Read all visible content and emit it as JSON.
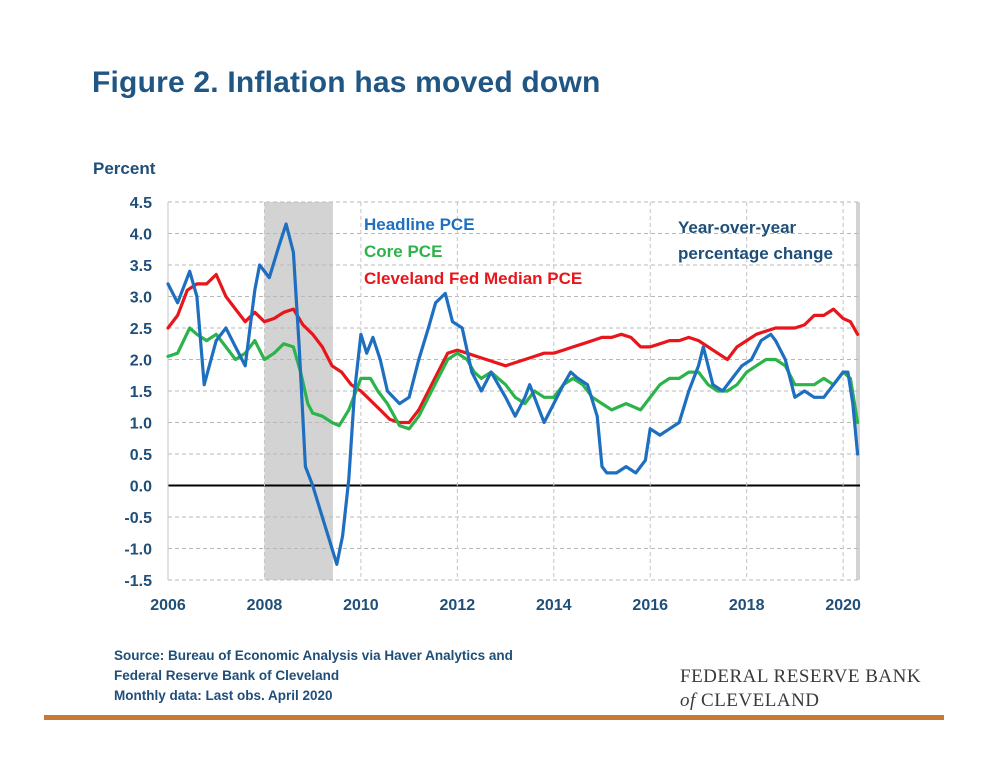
{
  "title": "Figure 2. Inflation has moved down",
  "source": {
    "line1": "Source: Bureau of Economic Analysis via Haver Analytics and",
    "line2": "Federal Reserve Bank of Cleveland",
    "line3": "Monthly data: Last obs. April 2020"
  },
  "logo": {
    "line1": "FEDERAL RESERVE BANK",
    "of": "of",
    "line2": "CLEVELAND"
  },
  "colors": {
    "title": "#1f5683",
    "headline": "#1f6fc0",
    "core": "#2cb34a",
    "median": "#e8161b",
    "recession": "#d3d3d3",
    "axis_text": "#1f4e79",
    "rule": "#c87a34"
  },
  "chart_data": {
    "type": "line",
    "ylabel": "Percent",
    "ylim": [
      -1.5,
      4.5
    ],
    "yticks": [
      "4.5",
      "4.0",
      "3.5",
      "3.0",
      "2.5",
      "2.0",
      "1.5",
      "1.0",
      "0.5",
      "0.0",
      "-0.5",
      "-1.0",
      "-1.5"
    ],
    "xlim": [
      2006.0,
      2020.35
    ],
    "xticks": [
      "2006",
      "2008",
      "2010",
      "2012",
      "2014",
      "2016",
      "2018",
      "2020"
    ],
    "grid": "horizontal dashed",
    "recession_shading": [
      2008.0,
      2009.42
    ],
    "annotation": [
      "Year-over-year",
      "percentage change"
    ],
    "legend_placement": "top-left inside plot",
    "series": [
      {
        "name": "Headline PCE",
        "points": [
          [
            2006.0,
            3.2
          ],
          [
            2006.2,
            2.9
          ],
          [
            2006.45,
            3.4
          ],
          [
            2006.6,
            3.0
          ],
          [
            2006.75,
            1.6
          ],
          [
            2007.0,
            2.3
          ],
          [
            2007.2,
            2.5
          ],
          [
            2007.4,
            2.2
          ],
          [
            2007.6,
            1.9
          ],
          [
            2007.8,
            3.1
          ],
          [
            2007.9,
            3.5
          ],
          [
            2008.1,
            3.3
          ],
          [
            2008.3,
            3.8
          ],
          [
            2008.45,
            4.15
          ],
          [
            2008.6,
            3.7
          ],
          [
            2008.72,
            2.2
          ],
          [
            2008.85,
            0.3
          ],
          [
            2009.0,
            0.0
          ],
          [
            2009.2,
            -0.5
          ],
          [
            2009.4,
            -1.0
          ],
          [
            2009.5,
            -1.25
          ],
          [
            2009.62,
            -0.8
          ],
          [
            2009.75,
            0.1
          ],
          [
            2009.87,
            1.5
          ],
          [
            2010.0,
            2.4
          ],
          [
            2010.12,
            2.1
          ],
          [
            2010.25,
            2.35
          ],
          [
            2010.4,
            2.0
          ],
          [
            2010.55,
            1.5
          ],
          [
            2010.8,
            1.3
          ],
          [
            2011.0,
            1.4
          ],
          [
            2011.2,
            2.0
          ],
          [
            2011.4,
            2.5
          ],
          [
            2011.55,
            2.9
          ],
          [
            2011.75,
            3.05
          ],
          [
            2011.9,
            2.6
          ],
          [
            2012.1,
            2.5
          ],
          [
            2012.3,
            1.8
          ],
          [
            2012.5,
            1.5
          ],
          [
            2012.7,
            1.8
          ],
          [
            2012.85,
            1.6
          ],
          [
            2013.0,
            1.4
          ],
          [
            2013.2,
            1.1
          ],
          [
            2013.4,
            1.4
          ],
          [
            2013.5,
            1.6
          ],
          [
            2013.7,
            1.2
          ],
          [
            2013.8,
            1.0
          ],
          [
            2014.0,
            1.3
          ],
          [
            2014.2,
            1.6
          ],
          [
            2014.35,
            1.8
          ],
          [
            2014.5,
            1.7
          ],
          [
            2014.7,
            1.6
          ],
          [
            2014.9,
            1.1
          ],
          [
            2015.0,
            0.3
          ],
          [
            2015.1,
            0.2
          ],
          [
            2015.3,
            0.2
          ],
          [
            2015.5,
            0.3
          ],
          [
            2015.7,
            0.2
          ],
          [
            2015.9,
            0.4
          ],
          [
            2016.0,
            0.9
          ],
          [
            2016.2,
            0.8
          ],
          [
            2016.4,
            0.9
          ],
          [
            2016.6,
            1.0
          ],
          [
            2016.8,
            1.5
          ],
          [
            2017.0,
            1.9
          ],
          [
            2017.1,
            2.2
          ],
          [
            2017.3,
            1.6
          ],
          [
            2017.5,
            1.5
          ],
          [
            2017.7,
            1.7
          ],
          [
            2017.9,
            1.9
          ],
          [
            2018.1,
            2.0
          ],
          [
            2018.3,
            2.3
          ],
          [
            2018.5,
            2.4
          ],
          [
            2018.6,
            2.3
          ],
          [
            2018.8,
            2.0
          ],
          [
            2019.0,
            1.4
          ],
          [
            2019.2,
            1.5
          ],
          [
            2019.4,
            1.4
          ],
          [
            2019.6,
            1.4
          ],
          [
            2019.8,
            1.6
          ],
          [
            2020.0,
            1.8
          ],
          [
            2020.1,
            1.8
          ],
          [
            2020.2,
            1.3
          ],
          [
            2020.3,
            0.5
          ]
        ]
      },
      {
        "name": "Core PCE",
        "points": [
          [
            2006.0,
            2.05
          ],
          [
            2006.2,
            2.1
          ],
          [
            2006.45,
            2.5
          ],
          [
            2006.6,
            2.4
          ],
          [
            2006.8,
            2.3
          ],
          [
            2007.0,
            2.4
          ],
          [
            2007.2,
            2.2
          ],
          [
            2007.4,
            2.0
          ],
          [
            2007.6,
            2.1
          ],
          [
            2007.8,
            2.3
          ],
          [
            2008.0,
            2.0
          ],
          [
            2008.2,
            2.1
          ],
          [
            2008.4,
            2.25
          ],
          [
            2008.6,
            2.2
          ],
          [
            2008.75,
            1.8
          ],
          [
            2008.9,
            1.3
          ],
          [
            2009.0,
            1.15
          ],
          [
            2009.2,
            1.1
          ],
          [
            2009.4,
            1.0
          ],
          [
            2009.55,
            0.95
          ],
          [
            2009.75,
            1.2
          ],
          [
            2010.0,
            1.7
          ],
          [
            2010.2,
            1.7
          ],
          [
            2010.35,
            1.5
          ],
          [
            2010.55,
            1.3
          ],
          [
            2010.8,
            0.95
          ],
          [
            2011.0,
            0.9
          ],
          [
            2011.2,
            1.1
          ],
          [
            2011.4,
            1.4
          ],
          [
            2011.6,
            1.7
          ],
          [
            2011.8,
            2.0
          ],
          [
            2012.0,
            2.1
          ],
          [
            2012.2,
            2.0
          ],
          [
            2012.35,
            1.8
          ],
          [
            2012.5,
            1.7
          ],
          [
            2012.7,
            1.8
          ],
          [
            2012.85,
            1.7
          ],
          [
            2013.0,
            1.6
          ],
          [
            2013.2,
            1.4
          ],
          [
            2013.4,
            1.3
          ],
          [
            2013.6,
            1.5
          ],
          [
            2013.8,
            1.4
          ],
          [
            2014.0,
            1.4
          ],
          [
            2014.2,
            1.6
          ],
          [
            2014.4,
            1.7
          ],
          [
            2014.6,
            1.6
          ],
          [
            2014.8,
            1.4
          ],
          [
            2015.0,
            1.3
          ],
          [
            2015.2,
            1.2
          ],
          [
            2015.5,
            1.3
          ],
          [
            2015.8,
            1.2
          ],
          [
            2016.0,
            1.4
          ],
          [
            2016.2,
            1.6
          ],
          [
            2016.4,
            1.7
          ],
          [
            2016.6,
            1.7
          ],
          [
            2016.8,
            1.8
          ],
          [
            2017.0,
            1.8
          ],
          [
            2017.2,
            1.6
          ],
          [
            2017.4,
            1.5
          ],
          [
            2017.6,
            1.5
          ],
          [
            2017.8,
            1.6
          ],
          [
            2018.0,
            1.8
          ],
          [
            2018.2,
            1.9
          ],
          [
            2018.4,
            2.0
          ],
          [
            2018.6,
            2.0
          ],
          [
            2018.8,
            1.9
          ],
          [
            2019.0,
            1.6
          ],
          [
            2019.2,
            1.6
          ],
          [
            2019.4,
            1.6
          ],
          [
            2019.6,
            1.7
          ],
          [
            2019.8,
            1.6
          ],
          [
            2020.0,
            1.8
          ],
          [
            2020.15,
            1.7
          ],
          [
            2020.3,
            1.0
          ]
        ]
      },
      {
        "name": "Cleveland Fed Median PCE",
        "points": [
          [
            2006.0,
            2.5
          ],
          [
            2006.2,
            2.7
          ],
          [
            2006.4,
            3.1
          ],
          [
            2006.6,
            3.2
          ],
          [
            2006.8,
            3.2
          ],
          [
            2007.0,
            3.35
          ],
          [
            2007.2,
            3.0
          ],
          [
            2007.4,
            2.8
          ],
          [
            2007.6,
            2.6
          ],
          [
            2007.8,
            2.75
          ],
          [
            2008.0,
            2.6
          ],
          [
            2008.2,
            2.65
          ],
          [
            2008.4,
            2.75
          ],
          [
            2008.6,
            2.8
          ],
          [
            2008.8,
            2.55
          ],
          [
            2009.0,
            2.4
          ],
          [
            2009.2,
            2.2
          ],
          [
            2009.4,
            1.9
          ],
          [
            2009.6,
            1.8
          ],
          [
            2009.8,
            1.6
          ],
          [
            2010.0,
            1.5
          ],
          [
            2010.2,
            1.35
          ],
          [
            2010.4,
            1.2
          ],
          [
            2010.6,
            1.05
          ],
          [
            2010.8,
            1.0
          ],
          [
            2011.0,
            1.0
          ],
          [
            2011.2,
            1.2
          ],
          [
            2011.4,
            1.5
          ],
          [
            2011.6,
            1.8
          ],
          [
            2011.8,
            2.1
          ],
          [
            2012.0,
            2.15
          ],
          [
            2012.2,
            2.1
          ],
          [
            2012.4,
            2.05
          ],
          [
            2012.6,
            2.0
          ],
          [
            2012.8,
            1.95
          ],
          [
            2013.0,
            1.9
          ],
          [
            2013.2,
            1.95
          ],
          [
            2013.4,
            2.0
          ],
          [
            2013.6,
            2.05
          ],
          [
            2013.8,
            2.1
          ],
          [
            2014.0,
            2.1
          ],
          [
            2014.2,
            2.15
          ],
          [
            2014.4,
            2.2
          ],
          [
            2014.6,
            2.25
          ],
          [
            2014.8,
            2.3
          ],
          [
            2015.0,
            2.35
          ],
          [
            2015.2,
            2.35
          ],
          [
            2015.4,
            2.4
          ],
          [
            2015.6,
            2.35
          ],
          [
            2015.8,
            2.2
          ],
          [
            2016.0,
            2.2
          ],
          [
            2016.2,
            2.25
          ],
          [
            2016.4,
            2.3
          ],
          [
            2016.6,
            2.3
          ],
          [
            2016.8,
            2.35
          ],
          [
            2017.0,
            2.3
          ],
          [
            2017.2,
            2.2
          ],
          [
            2017.4,
            2.1
          ],
          [
            2017.6,
            2.0
          ],
          [
            2017.8,
            2.2
          ],
          [
            2018.0,
            2.3
          ],
          [
            2018.2,
            2.4
          ],
          [
            2018.4,
            2.45
          ],
          [
            2018.6,
            2.5
          ],
          [
            2018.8,
            2.5
          ],
          [
            2019.0,
            2.5
          ],
          [
            2019.2,
            2.55
          ],
          [
            2019.4,
            2.7
          ],
          [
            2019.6,
            2.7
          ],
          [
            2019.8,
            2.8
          ],
          [
            2020.0,
            2.65
          ],
          [
            2020.15,
            2.6
          ],
          [
            2020.3,
            2.4
          ]
        ]
      }
    ]
  }
}
